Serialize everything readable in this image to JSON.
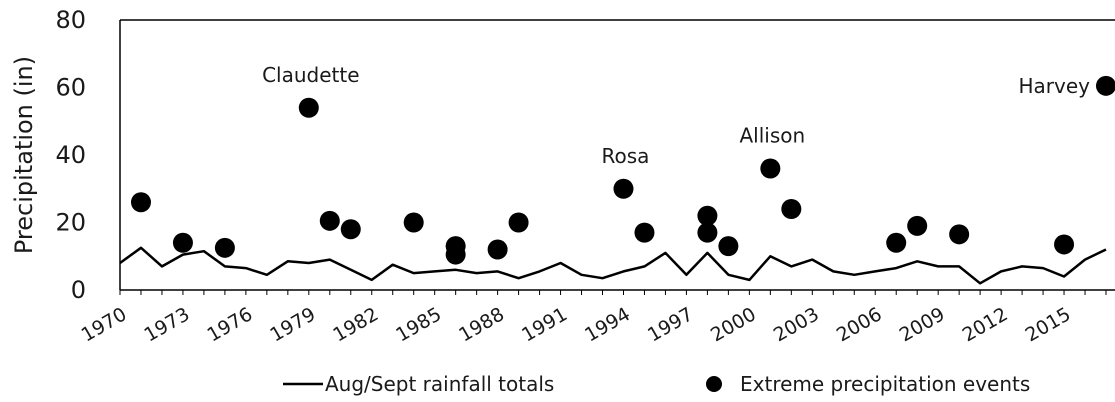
{
  "chart_data": {
    "type": "line",
    "ylabel": "Precipitation (in)",
    "ylim": [
      0,
      80
    ],
    "xlim": [
      1970,
      2017
    ],
    "yticks": [
      0,
      20,
      40,
      60,
      80
    ],
    "xticks": [
      "1970",
      "1973",
      "1976",
      "1979",
      "1982",
      "1985",
      "1988",
      "1991",
      "1994",
      "1997",
      "2000",
      "2003",
      "2006",
      "2009",
      "2012",
      "2015"
    ],
    "grid": false,
    "legend_position": "bottom",
    "series": [
      {
        "name": "Aug/Sept rainfall totals",
        "kind": "line",
        "color": "#000000",
        "points": [
          [
            1970,
            8
          ],
          [
            1971,
            12.5
          ],
          [
            1972,
            7
          ],
          [
            1973,
            10.5
          ],
          [
            1974,
            11.5
          ],
          [
            1975,
            7
          ],
          [
            1976,
            6.5
          ],
          [
            1977,
            4.5
          ],
          [
            1978,
            8.5
          ],
          [
            1979,
            8
          ],
          [
            1980,
            9
          ],
          [
            1981,
            6
          ],
          [
            1982,
            3
          ],
          [
            1983,
            7.5
          ],
          [
            1984,
            5
          ],
          [
            1985,
            5.5
          ],
          [
            1986,
            6
          ],
          [
            1987,
            5
          ],
          [
            1988,
            5.5
          ],
          [
            1989,
            3.5
          ],
          [
            1990,
            5.5
          ],
          [
            1991,
            8
          ],
          [
            1992,
            4.5
          ],
          [
            1993,
            3.5
          ],
          [
            1994,
            5.5
          ],
          [
            1995,
            7
          ],
          [
            1996,
            11
          ],
          [
            1997,
            4.5
          ],
          [
            1998,
            11
          ],
          [
            1999,
            4.5
          ],
          [
            2000,
            3
          ],
          [
            2001,
            10
          ],
          [
            2002,
            7
          ],
          [
            2003,
            9
          ],
          [
            2004,
            5.5
          ],
          [
            2005,
            4.5
          ],
          [
            2006,
            5.5
          ],
          [
            2007,
            6.5
          ],
          [
            2008,
            8.5
          ],
          [
            2009,
            7
          ],
          [
            2010,
            7
          ],
          [
            2011,
            2
          ],
          [
            2012,
            5.5
          ],
          [
            2013,
            7
          ],
          [
            2014,
            6.5
          ],
          [
            2015,
            4
          ],
          [
            2016,
            9
          ],
          [
            2017,
            12
          ]
        ]
      },
      {
        "name": "Extreme precipitation events",
        "kind": "scatter",
        "color": "#000000",
        "points": [
          [
            1971,
            26
          ],
          [
            1973,
            14
          ],
          [
            1975,
            12.5
          ],
          [
            1979,
            54
          ],
          [
            1980,
            20.5
          ],
          [
            1981,
            18
          ],
          [
            1984,
            20
          ],
          [
            1986,
            13
          ],
          [
            1986,
            10.5
          ],
          [
            1988,
            12
          ],
          [
            1989,
            20
          ],
          [
            1994,
            30
          ],
          [
            1995,
            17
          ],
          [
            1998,
            22
          ],
          [
            1998,
            17
          ],
          [
            1999,
            13
          ],
          [
            2001,
            36
          ],
          [
            2002,
            24
          ],
          [
            2007,
            14
          ],
          [
            2008,
            19
          ],
          [
            2010,
            16.5
          ],
          [
            2015,
            13.5
          ],
          [
            2017,
            60.5
          ]
        ]
      }
    ],
    "annotations": [
      {
        "text": "Claudette",
        "x": 1979,
        "y": 54
      },
      {
        "text": "Rosa",
        "x": 1994,
        "y": 30
      },
      {
        "text": "Allison",
        "x": 2001,
        "y": 36
      },
      {
        "text": "Harvey",
        "x": 2017,
        "y": 60.5
      }
    ]
  }
}
